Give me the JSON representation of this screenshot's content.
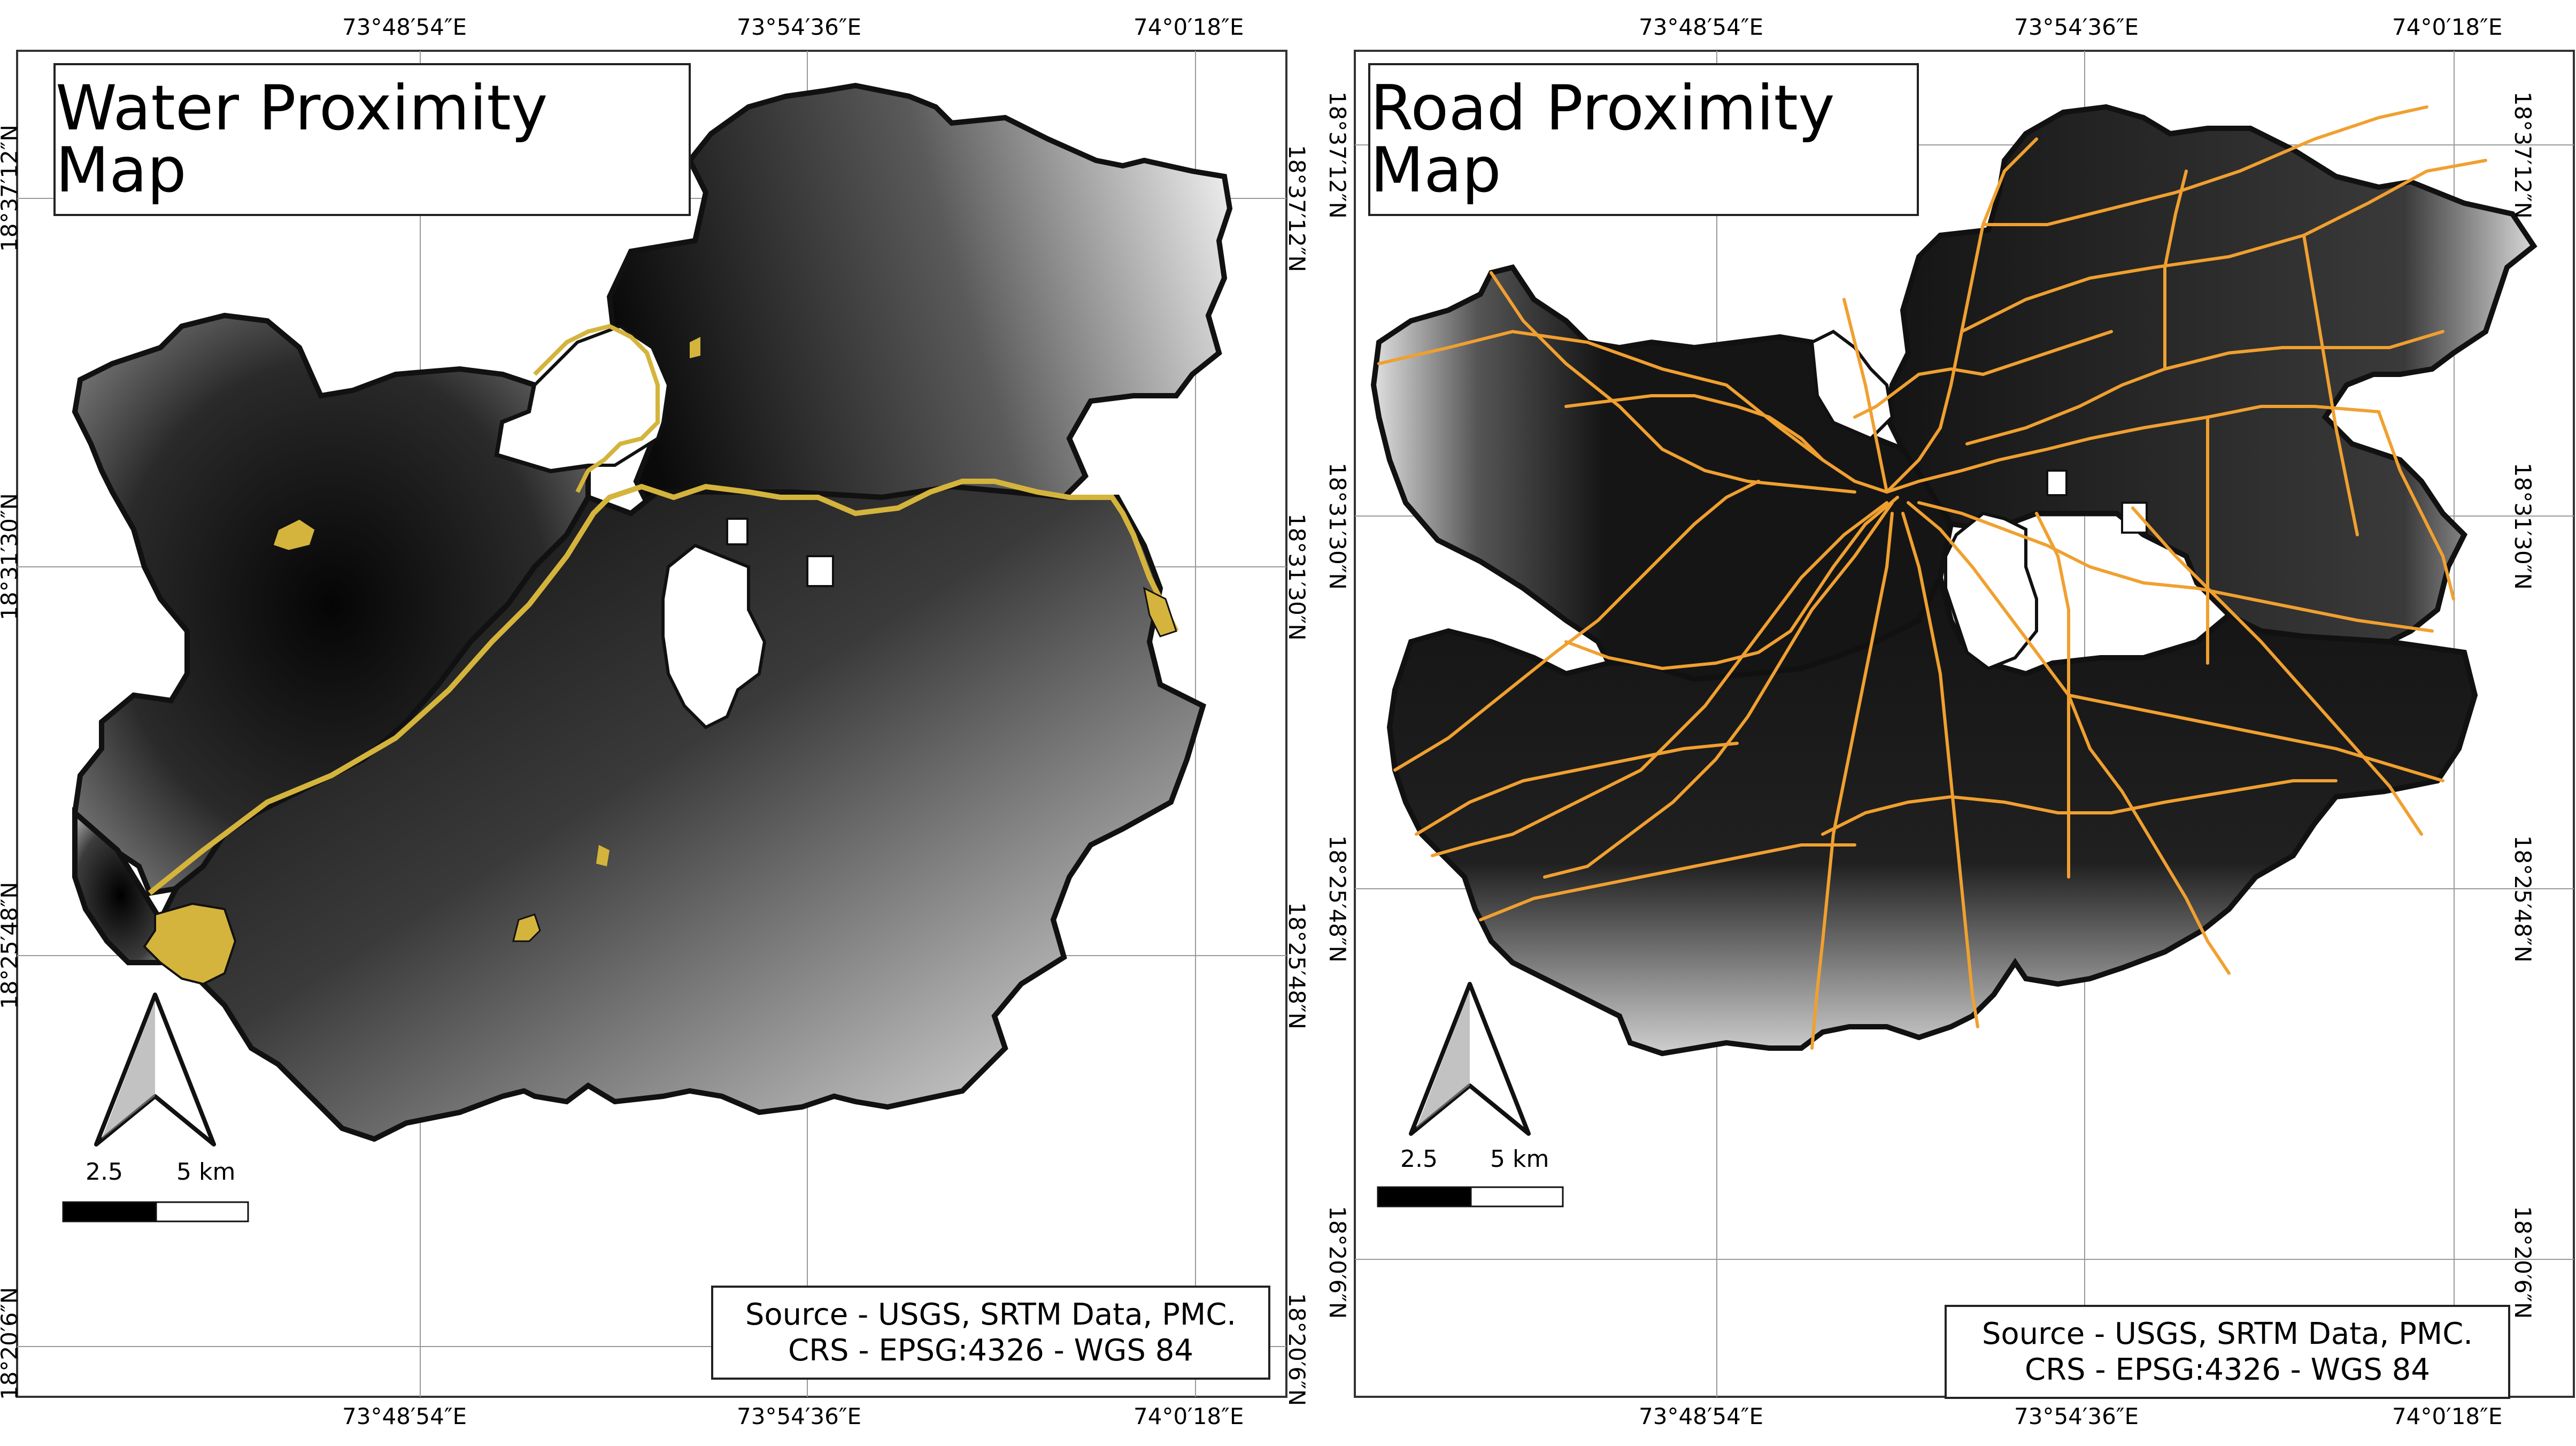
{
  "maps": [
    {
      "title": "Water Proximity Map",
      "overlay_color": "#d4b43c",
      "top_ticks": [
        "73°48′54″E",
        "73°54′36″E",
        "74°0′18″E"
      ],
      "bottom_ticks": [
        "73°48′54″E",
        "73°54′36″E",
        "74°0′18″E"
      ],
      "left_ticks": [
        "18°37′12″N",
        "18°31′30″N",
        "18°25′48″N",
        "18°20′6″N"
      ],
      "right_ticks": [
        "18°37′12″N",
        "18°31′30″N",
        "18°25′48″N",
        "18°20′6″N"
      ],
      "scale": {
        "mid": "2.5",
        "end": "5 km"
      },
      "source_line1": "Source - USGS, SRTM Data, PMC.",
      "source_line2": "CRS - EPSG:4326 - WGS 84"
    },
    {
      "title": "Road Proximity Map",
      "overlay_color": "#f0a030",
      "top_ticks": [
        "73°48′54″E",
        "73°54′36″E",
        "74°0′18″E"
      ],
      "bottom_ticks": [
        "73°48′54″E",
        "73°54′36″E",
        "74°0′18″E"
      ],
      "left_ticks": [
        "18°37′12″N",
        "18°31′30″N",
        "18°25′48″N",
        "18°20′6″N"
      ],
      "right_ticks": [
        "18°37′12″N",
        "18°31′30″N",
        "18°25′48″N",
        "18°20′6″N"
      ],
      "scale": {
        "mid": "2.5",
        "end": "5 km"
      },
      "source_line1": "Source - USGS, SRTM Data, PMC.",
      "source_line2": "CRS - EPSG:4326 - WGS 84"
    }
  ]
}
